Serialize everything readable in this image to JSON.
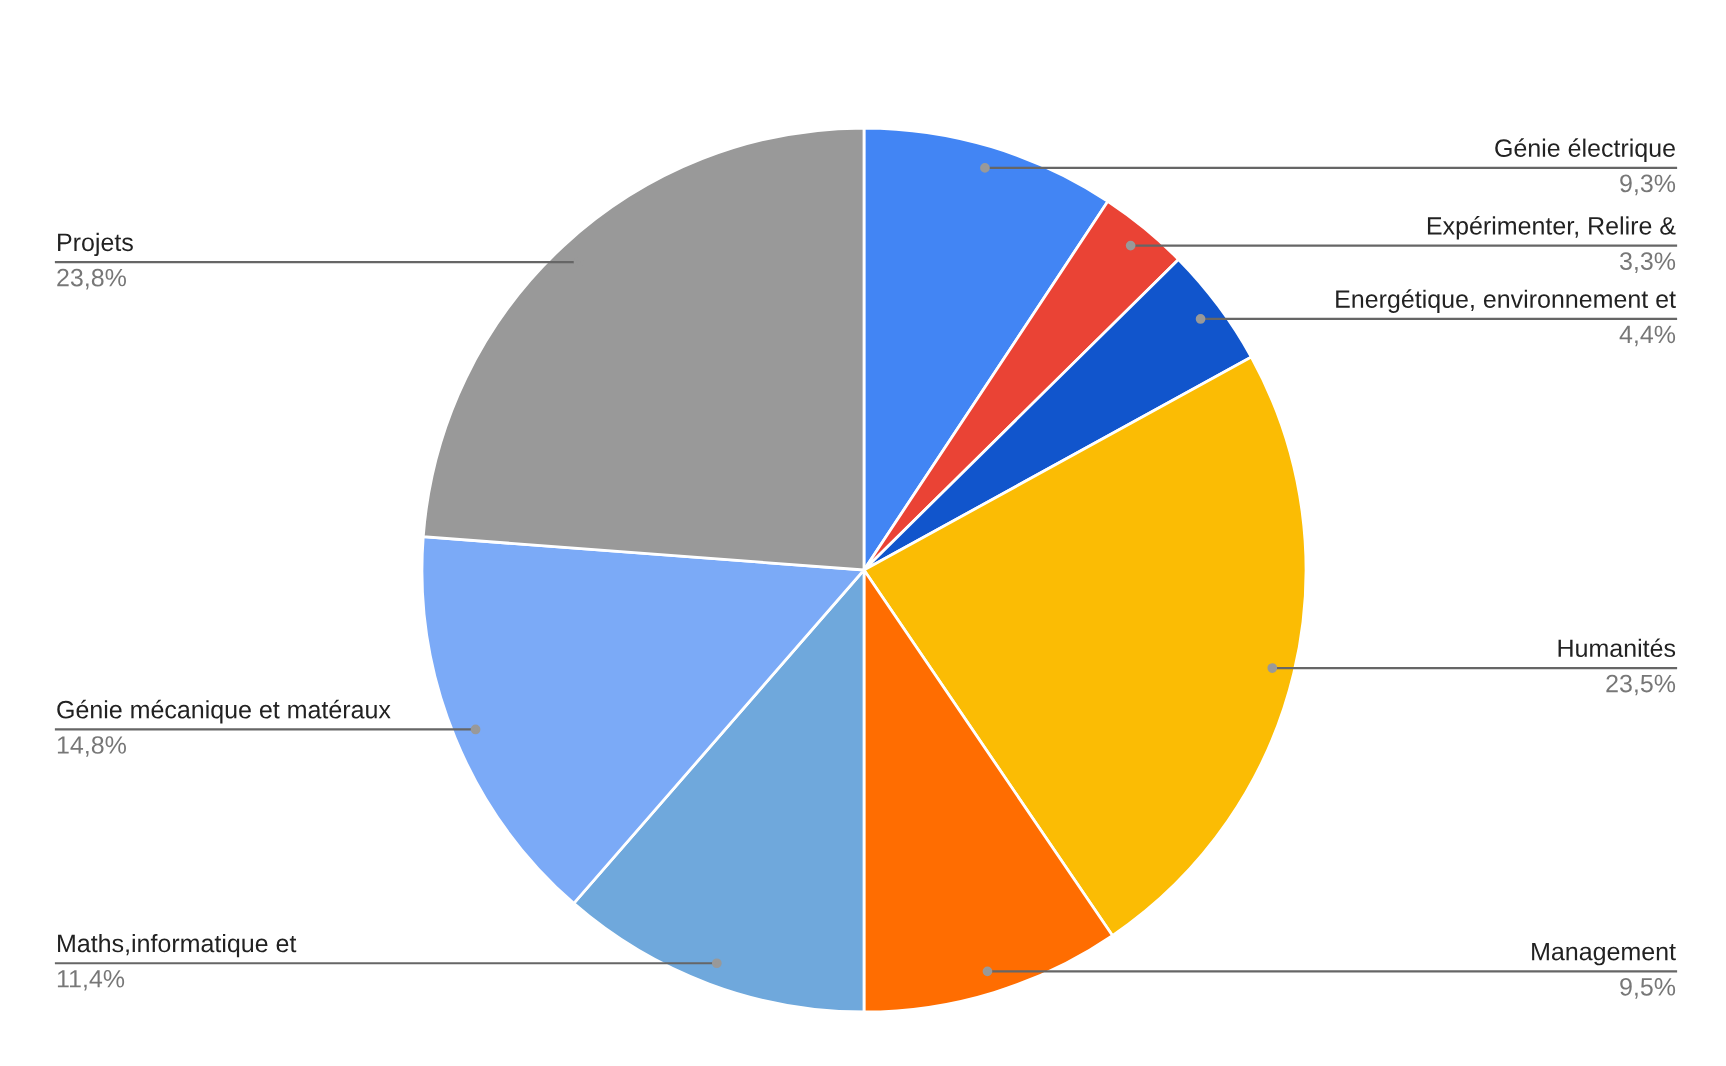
{
  "chart_data": {
    "type": "pie",
    "categories": [
      "Génie électrique",
      "Expérimenter, Relire &",
      "Energétique, environnement et",
      "Humanités",
      "Management",
      "Maths,informatique et",
      "Génie mécanique et matéraux",
      "Projets"
    ],
    "values": [
      9.3,
      3.3,
      4.4,
      23.5,
      9.5,
      11.4,
      14.8,
      23.8
    ],
    "colors": [
      "#4285f4",
      "#ea4335",
      "#1155cc",
      "#fbbc04",
      "#ff6d01",
      "#6fa8dc",
      "#7baaf7",
      "#999999"
    ],
    "value_labels": [
      "9,3%",
      "3,3%",
      "4,4%",
      "23,5%",
      "9,5%",
      "11,4%",
      "14,8%",
      "23,8%"
    ],
    "legend": false
  }
}
